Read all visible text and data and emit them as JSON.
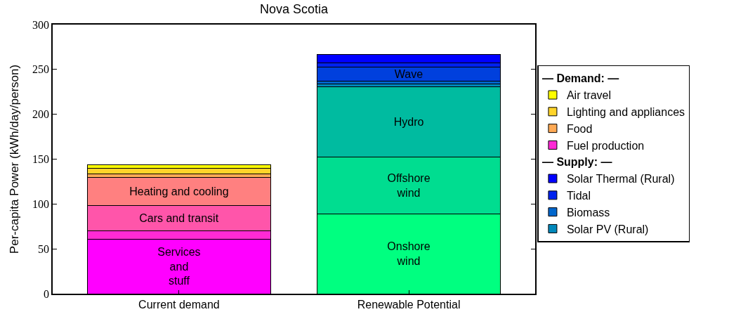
{
  "chart_data": {
    "type": "bar",
    "stacked": true,
    "title": "Nova Scotia",
    "ylabel": "Per-capita Power (kWh/day/person)",
    "categories": [
      "Current demand",
      "Renewable Potential"
    ],
    "ylim": [
      0,
      300
    ],
    "yticks": [
      0,
      50,
      100,
      150,
      200,
      250,
      300
    ],
    "legend": "right",
    "annotations": [
      "— Demand: —",
      "— Supply: —"
    ],
    "series": [
      {
        "name": "Services\nand\nstuff",
        "color": "#ff00ff",
        "values": [
          61,
          null
        ]
      },
      {
        "name": "Fuel production",
        "color": "#ff2ad5",
        "values": [
          9,
          null
        ]
      },
      {
        "name": "Cars and transit",
        "color": "#ff55aa",
        "values": [
          28,
          null
        ]
      },
      {
        "name": "Heating and cooling",
        "color": "#ff8080",
        "values": [
          32,
          null
        ]
      },
      {
        "name": "Food",
        "color": "#ffaa55",
        "values": [
          3.5,
          null
        ]
      },
      {
        "name": "Lighting and appliances",
        "color": "#ffd42a",
        "values": [
          6,
          null
        ]
      },
      {
        "name": "Air travel",
        "color": "#ffff00",
        "values": [
          4,
          null
        ]
      },
      {
        "name": "Onshore\nwind",
        "color": "#00ff80",
        "values": [
          null,
          89
        ]
      },
      {
        "name": "Offshore\nwind",
        "color": "#00dd90",
        "values": [
          null,
          63
        ]
      },
      {
        "name": "Hydro",
        "color": "#00bba0",
        "values": [
          null,
          79
        ]
      },
      {
        "name": "Solar PV (Rural)",
        "color": "#0088bb",
        "values": [
          null,
          3
        ]
      },
      {
        "name": "Biomass",
        "color": "#0066cc",
        "values": [
          null,
          3
        ]
      },
      {
        "name": "Wave",
        "color": "#0040dd",
        "values": [
          null,
          16
        ]
      },
      {
        "name": "Tidal",
        "color": "#0022ee",
        "values": [
          null,
          4
        ]
      },
      {
        "name": "Solar Thermal (Rural)",
        "color": "#0000ff",
        "values": [
          null,
          9.5
        ]
      }
    ]
  }
}
